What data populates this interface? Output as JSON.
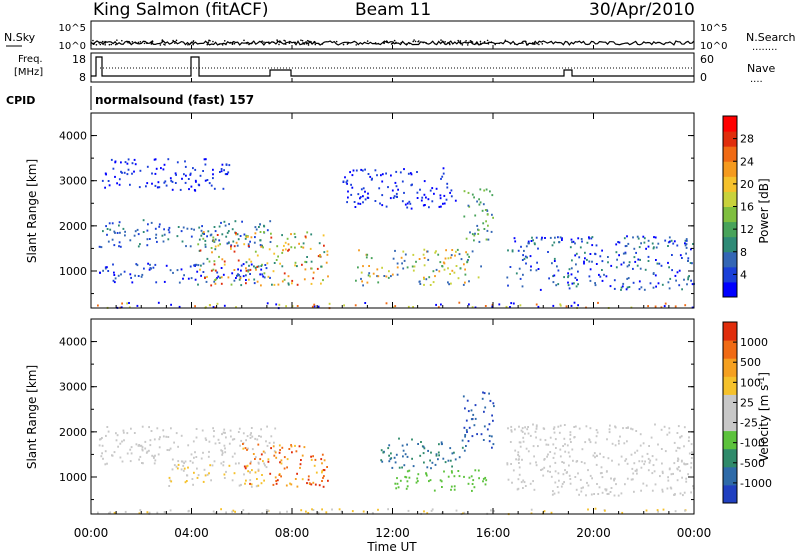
{
  "header": {
    "title_left": "King Salmon (fitACF)",
    "title_center": "Beam 11",
    "title_right": "30/Apr/2010"
  },
  "top_panel": {
    "left_label": "N.Sky",
    "right_label": "N.Search",
    "right_legend_dots": "........",
    "ticks_left": [
      "10^5",
      "10^0"
    ],
    "ticks_right": [
      "10^5",
      "10^0"
    ]
  },
  "freq_panel": {
    "left_label_1": "Freq.",
    "left_label_2": "[MHz]",
    "right_label": "Nave",
    "right_legend_dots": "....",
    "ticks_left": [
      "18",
      "8"
    ],
    "ticks_right": [
      "60",
      "0"
    ]
  },
  "cpid": {
    "label": "CPID",
    "text": "normalsound (fast) 157"
  },
  "chart_data": [
    {
      "type": "heatmap",
      "name": "power",
      "ylabel": "Slant Range [km]",
      "yticks": [
        "4000",
        "3000",
        "2000",
        "1000"
      ],
      "ylim": [
        180,
        4500
      ],
      "colorbar": {
        "label": "Power [dB]",
        "ticks": [
          "28",
          "24",
          "20",
          "16",
          "12",
          "8",
          "4"
        ],
        "colors": [
          "#0000ff",
          "#1a3fd8",
          "#3366b5",
          "#2e8a76",
          "#48a35a",
          "#7fbf3f",
          "#c8d23c",
          "#f5c12b",
          "#f59a1e",
          "#f06a14",
          "#e02d0c",
          "#ff0000"
        ]
      }
    },
    {
      "type": "heatmap",
      "name": "velocity",
      "ylabel": "Slant Range [km]",
      "yticks": [
        "4000",
        "3000",
        "2000",
        "1000"
      ],
      "ylim": [
        180,
        4500
      ],
      "colorbar": {
        "label": "Velocity [m s-1]",
        "label_main": "Velocity [m s",
        "label_sup": "-1",
        "label_end": "]",
        "ticks": [
          "1000",
          "500",
          "100",
          "25",
          "-25",
          "-100",
          "-500",
          "-1000"
        ],
        "colors": [
          "#2040c0",
          "#2e6aa8",
          "#2f8a6a",
          "#5cc23c",
          "#c8c8c8",
          "#c8c8c8",
          "#f5c12b",
          "#f5a020",
          "#f06a14",
          "#e02d0c"
        ]
      }
    }
  ],
  "xaxis": {
    "label": "Time UT",
    "ticks": [
      "00:00",
      "04:00",
      "08:00",
      "12:00",
      "16:00",
      "20:00",
      "00:00"
    ]
  }
}
